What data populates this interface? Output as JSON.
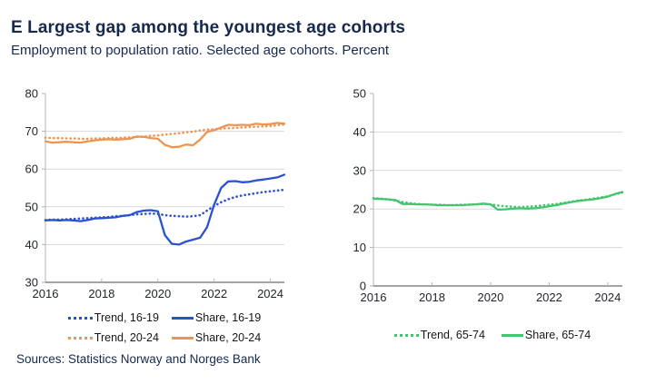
{
  "header": {
    "title": "E Largest gap among the youngest age cohorts",
    "subtitle": "Employment to population ratio. Selected age cohorts. Percent"
  },
  "sources": "Sources: Statistics Norway and Norges Bank",
  "palette": {
    "blue": "#2a52cf",
    "orange": "#ec9552",
    "green": "#43c46d",
    "grid": "#d9d9d9",
    "axis_y": "#b3b3b3",
    "axis_x": "#6e6e6e",
    "tick_text": "#1f232b",
    "heading_text": "#17294e"
  },
  "chart_data": [
    {
      "type": "line",
      "panel": "left",
      "x": {
        "start": 2016,
        "step": 0.25
      },
      "xlim": [
        2016,
        2024.5
      ],
      "ylim": [
        30,
        80
      ],
      "yticks": [
        30,
        40,
        50,
        60,
        70,
        80
      ],
      "xticks": [
        2016,
        2018,
        2020,
        2022,
        2024
      ],
      "grid": true,
      "legend_position": "bottom",
      "series": [
        {
          "name": "Trend, 16-19",
          "style": "dotted",
          "color": "#2a52cf",
          "values": [
            46.5,
            46.6,
            46.6,
            46.7,
            46.8,
            46.9,
            47.0,
            47.1,
            47.2,
            47.3,
            47.5,
            47.6,
            47.8,
            48.0,
            48.1,
            48.2,
            48.1,
            47.8,
            47.6,
            47.5,
            47.4,
            47.5,
            47.8,
            49.0,
            50.2,
            51.2,
            52.0,
            52.6,
            53.0,
            53.3,
            53.6,
            53.9,
            54.1,
            54.3,
            54.5
          ]
        },
        {
          "name": "Share, 16-19",
          "style": "solid",
          "color": "#2a52cf",
          "values": [
            46.4,
            46.5,
            46.4,
            46.5,
            46.4,
            46.2,
            46.5,
            46.9,
            47.0,
            47.1,
            47.2,
            47.6,
            47.8,
            48.6,
            49.0,
            49.1,
            48.8,
            42.5,
            40.2,
            40.0,
            40.8,
            41.3,
            41.8,
            44.6,
            50.5,
            55.0,
            56.7,
            56.8,
            56.5,
            56.6,
            57.0,
            57.2,
            57.5,
            57.8,
            58.5
          ]
        },
        {
          "name": "Trend, 20-24",
          "style": "dotted",
          "color": "#ec9552",
          "values": [
            68.3,
            68.2,
            68.2,
            68.1,
            68.1,
            68.0,
            68.0,
            68.1,
            68.1,
            68.2,
            68.2,
            68.3,
            68.4,
            68.5,
            68.6,
            68.8,
            68.9,
            69.1,
            69.3,
            69.5,
            69.7,
            69.9,
            70.2,
            70.4,
            70.5,
            70.7,
            70.8,
            70.9,
            71.0,
            71.1,
            71.2,
            71.3,
            71.4,
            71.6,
            71.8
          ]
        },
        {
          "name": "Share, 20-24",
          "style": "solid",
          "color": "#ec9552",
          "values": [
            67.3,
            67.0,
            67.1,
            67.2,
            67.1,
            67.0,
            67.3,
            67.6,
            67.8,
            67.9,
            67.8,
            67.9,
            68.0,
            68.6,
            68.5,
            68.2,
            68.0,
            66.4,
            65.8,
            65.9,
            66.5,
            66.3,
            67.8,
            69.8,
            70.3,
            71.0,
            71.7,
            71.6,
            71.7,
            71.6,
            72.0,
            71.8,
            71.9,
            72.2,
            72.0
          ]
        }
      ]
    },
    {
      "type": "line",
      "panel": "right",
      "x": {
        "start": 2016,
        "step": 0.25
      },
      "xlim": [
        2016,
        2024.5
      ],
      "ylim": [
        0,
        50
      ],
      "yticks": [
        0,
        10,
        20,
        30,
        40,
        50
      ],
      "xticks": [
        2016,
        2018,
        2020,
        2022,
        2024
      ],
      "grid": true,
      "legend_position": "bottom",
      "series": [
        {
          "name": "Trend, 65-74",
          "style": "dotted",
          "color": "#43c46d",
          "values": [
            22.8,
            22.7,
            22.5,
            22.2,
            21.8,
            21.5,
            21.3,
            21.2,
            21.1,
            21.1,
            21.0,
            21.0,
            21.1,
            21.1,
            21.2,
            21.3,
            21.2,
            20.9,
            20.7,
            20.6,
            20.5,
            20.6,
            20.7,
            20.9,
            21.1,
            21.3,
            21.6,
            21.9,
            22.2,
            22.4,
            22.7,
            23.0,
            23.3,
            23.8,
            24.3
          ]
        },
        {
          "name": "Share, 65-74",
          "style": "solid",
          "color": "#43c46d",
          "values": [
            22.7,
            22.6,
            22.5,
            22.3,
            21.3,
            21.3,
            21.2,
            21.2,
            21.1,
            21.0,
            21.0,
            21.0,
            21.0,
            21.1,
            21.2,
            21.4,
            21.2,
            19.8,
            19.9,
            20.1,
            20.2,
            20.1,
            20.2,
            20.4,
            20.7,
            21.0,
            21.4,
            21.8,
            22.1,
            22.3,
            22.5,
            22.8,
            23.2,
            23.9,
            24.4
          ]
        }
      ]
    }
  ]
}
